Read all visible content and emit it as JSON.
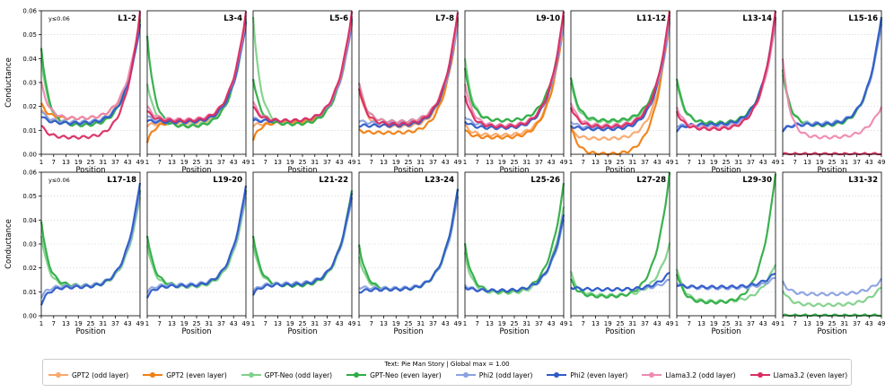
{
  "figure": {
    "ylabel": "Conductance",
    "xlabel": "Position",
    "cap_note": "y≤0.06"
  },
  "legend": {
    "title": "Text: Pie Man Story | Global max = 1.00",
    "entries": [
      {
        "name": "GPT2 (odd layer)",
        "color": "#f9a86b"
      },
      {
        "name": "GPT2 (even layer)",
        "color": "#f07f12"
      },
      {
        "name": "GPT-Neo (odd layer)",
        "color": "#7fd18a"
      },
      {
        "name": "GPT-Neo (even layer)",
        "color": "#2fad46"
      },
      {
        "name": "Phi2 (odd layer)",
        "color": "#8aa2e0"
      },
      {
        "name": "Phi2 (even layer)",
        "color": "#2e5bc8"
      },
      {
        "name": "Llama3.2 (odd layer)",
        "color": "#ee8ab0"
      },
      {
        "name": "Llama3.2 (even layer)",
        "color": "#d92d62"
      }
    ]
  },
  "chart_data": {
    "type": "line",
    "x": [
      1,
      2,
      3,
      4,
      5,
      6,
      7,
      8,
      9,
      10,
      11,
      12,
      13,
      14,
      15,
      16,
      17,
      18,
      19,
      20,
      21,
      22,
      23,
      24,
      25,
      26,
      27,
      28,
      29,
      30,
      31,
      32,
      33,
      34,
      35,
      36,
      37,
      38,
      39,
      40,
      41,
      42,
      43,
      44,
      45,
      46,
      47,
      48,
      49
    ],
    "xticks": [
      "1",
      "7",
      "13",
      "19",
      "25",
      "31",
      "37",
      "43",
      "49"
    ],
    "yticks": [
      "0.00",
      "0.01",
      "0.02",
      "0.03",
      "0.04",
      "0.05",
      "0.06"
    ],
    "ylim": [
      0,
      0.06
    ],
    "xlim": [
      1,
      49
    ],
    "grid": "horizontal dotted",
    "panels": [
      {
        "title": "L1-2",
        "series": {
          "GPT2 (odd layer)": {
            "start": 0.019,
            "base": 0.013,
            "end": 0.055
          },
          "GPT2 (even layer)": {
            "start": 0.021,
            "base": 0.015,
            "end": 0.056
          },
          "GPT-Neo (odd layer)": {
            "start": 0.04,
            "base": 0.0125,
            "end": 0.056
          },
          "GPT-Neo (even layer)": {
            "start": 0.045,
            "base": 0.012,
            "end": 0.057
          },
          "Phi2 (odd layer)": {
            "start": 0.018,
            "base": 0.0135,
            "end": 0.054
          },
          "Phi2 (even layer)": {
            "start": 0.016,
            "base": 0.013,
            "end": 0.055
          },
          "Llama3.2 (odd layer)": {
            "start": 0.03,
            "base": 0.015,
            "end": 0.058
          },
          "Llama3.2 (even layer)": {
            "start": 0.012,
            "base": 0.007,
            "end": 0.06
          }
        }
      },
      {
        "title": "L3-4",
        "series": {
          "GPT2 (odd layer)": {
            "start": 0.012,
            "base": 0.013,
            "end": 0.055
          },
          "GPT2 (even layer)": {
            "start": 0.005,
            "base": 0.0135,
            "end": 0.056
          },
          "GPT-Neo (odd layer)": {
            "start": 0.03,
            "base": 0.012,
            "end": 0.056
          },
          "GPT-Neo (even layer)": {
            "start": 0.05,
            "base": 0.0115,
            "end": 0.057
          },
          "Phi2 (odd layer)": {
            "start": 0.016,
            "base": 0.0135,
            "end": 0.055
          },
          "Phi2 (even layer)": {
            "start": 0.014,
            "base": 0.0135,
            "end": 0.056
          },
          "Llama3.2 (odd layer)": {
            "start": 0.02,
            "base": 0.0145,
            "end": 0.058
          },
          "Llama3.2 (even layer)": {
            "start": 0.018,
            "base": 0.014,
            "end": 0.06
          }
        }
      },
      {
        "title": "L5-6",
        "series": {
          "GPT2 (odd layer)": {
            "start": 0.012,
            "base": 0.013,
            "end": 0.055
          },
          "GPT2 (even layer)": {
            "start": 0.006,
            "base": 0.0135,
            "end": 0.056
          },
          "GPT-Neo (odd layer)": {
            "start": 0.058,
            "base": 0.0125,
            "end": 0.056
          },
          "GPT-Neo (even layer)": {
            "start": 0.032,
            "base": 0.0125,
            "end": 0.057
          },
          "Phi2 (odd layer)": {
            "start": 0.015,
            "base": 0.014,
            "end": 0.055
          },
          "Phi2 (even layer)": {
            "start": 0.014,
            "base": 0.014,
            "end": 0.057
          },
          "Llama3.2 (odd layer)": {
            "start": 0.022,
            "base": 0.014,
            "end": 0.058
          },
          "Llama3.2 (even layer)": {
            "start": 0.02,
            "base": 0.014,
            "end": 0.06
          }
        }
      },
      {
        "title": "L7-8",
        "series": {
          "GPT2 (odd layer)": {
            "start": 0.028,
            "base": 0.0115,
            "end": 0.055
          },
          "GPT2 (even layer)": {
            "start": 0.01,
            "base": 0.009,
            "end": 0.056
          },
          "GPT-Neo (odd layer)": {
            "start": 0.03,
            "base": 0.0135,
            "end": 0.056
          },
          "GPT-Neo (even layer)": {
            "start": 0.03,
            "base": 0.0135,
            "end": 0.057
          },
          "Phi2 (odd layer)": {
            "start": 0.014,
            "base": 0.013,
            "end": 0.055
          },
          "Phi2 (even layer)": {
            "start": 0.012,
            "base": 0.012,
            "end": 0.058
          },
          "Llama3.2 (odd layer)": {
            "start": 0.03,
            "base": 0.0135,
            "end": 0.058
          },
          "Llama3.2 (even layer)": {
            "start": 0.028,
            "base": 0.0125,
            "end": 0.06
          }
        }
      },
      {
        "title": "L9-10",
        "series": {
          "GPT2 (odd layer)": {
            "start": 0.012,
            "base": 0.008,
            "end": 0.055
          },
          "GPT2 (even layer)": {
            "start": 0.01,
            "base": 0.007,
            "end": 0.056
          },
          "GPT-Neo (odd layer)": {
            "start": 0.04,
            "base": 0.014,
            "end": 0.056
          },
          "GPT-Neo (even layer)": {
            "start": 0.036,
            "base": 0.014,
            "end": 0.057
          },
          "Phi2 (odd layer)": {
            "start": 0.016,
            "base": 0.012,
            "end": 0.055
          },
          "Phi2 (even layer)": {
            "start": 0.014,
            "base": 0.011,
            "end": 0.058
          },
          "Llama3.2 (odd layer)": {
            "start": 0.03,
            "base": 0.012,
            "end": 0.058
          },
          "Llama3.2 (even layer)": {
            "start": 0.025,
            "base": 0.0115,
            "end": 0.06
          }
        }
      },
      {
        "title": "L11-12",
        "series": {
          "GPT2 (odd layer)": {
            "start": 0.01,
            "base": 0.0065,
            "end": 0.055
          },
          "GPT2 (even layer)": {
            "start": 0.012,
            "base": 0.0,
            "end": 0.06
          },
          "GPT-Neo (odd layer)": {
            "start": 0.03,
            "base": 0.0135,
            "end": 0.056
          },
          "GPT-Neo (even layer)": {
            "start": 0.032,
            "base": 0.014,
            "end": 0.057
          },
          "Phi2 (odd layer)": {
            "start": 0.014,
            "base": 0.011,
            "end": 0.055
          },
          "Phi2 (even layer)": {
            "start": 0.012,
            "base": 0.0105,
            "end": 0.058
          },
          "Llama3.2 (odd layer)": {
            "start": 0.022,
            "base": 0.012,
            "end": 0.058
          },
          "Llama3.2 (even layer)": {
            "start": 0.02,
            "base": 0.0115,
            "end": 0.06
          }
        }
      },
      {
        "title": "L13-14",
        "series": {
          "GPT-Neo (odd layer)": {
            "start": 0.03,
            "base": 0.013,
            "end": 0.056
          },
          "GPT-Neo (even layer)": {
            "start": 0.032,
            "base": 0.013,
            "end": 0.057
          },
          "Phi2 (odd layer)": {
            "start": 0.012,
            "base": 0.012,
            "end": 0.055
          },
          "Phi2 (even layer)": {
            "start": 0.01,
            "base": 0.0125,
            "end": 0.058
          },
          "Llama3.2 (odd layer)": {
            "start": 0.02,
            "base": 0.011,
            "end": 0.056
          },
          "Llama3.2 (even layer)": {
            "start": 0.018,
            "base": 0.0105,
            "end": 0.06
          }
        }
      },
      {
        "title": "L15-16",
        "series": {
          "GPT-Neo (odd layer)": {
            "start": 0.034,
            "base": 0.0125,
            "end": 0.056
          },
          "GPT-Neo (even layer)": {
            "start": 0.036,
            "base": 0.012,
            "end": 0.057
          },
          "Phi2 (odd layer)": {
            "start": 0.01,
            "base": 0.013,
            "end": 0.055
          },
          "Phi2 (even layer)": {
            "start": 0.01,
            "base": 0.0125,
            "end": 0.058
          },
          "Llama3.2 (odd layer)": {
            "start": 0.04,
            "base": 0.007,
            "end": 0.02
          },
          "Llama3.2 (even layer)": {
            "start": 0.0,
            "base": 0.0,
            "end": 0.0
          }
        }
      },
      {
        "title": "L17-18",
        "series": {
          "GPT-Neo (odd layer)": {
            "start": 0.034,
            "base": 0.012,
            "end": 0.05
          },
          "GPT-Neo (even layer)": {
            "start": 0.04,
            "base": 0.0125,
            "end": 0.053
          },
          "Phi2 (odd layer)": {
            "start": 0.008,
            "base": 0.0125,
            "end": 0.052
          },
          "Phi2 (even layer)": {
            "start": 0.005,
            "base": 0.012,
            "end": 0.056
          }
        }
      },
      {
        "title": "L19-20",
        "series": {
          "GPT-Neo (odd layer)": {
            "start": 0.03,
            "base": 0.012,
            "end": 0.05
          },
          "GPT-Neo (even layer)": {
            "start": 0.034,
            "base": 0.0125,
            "end": 0.053
          },
          "Phi2 (odd layer)": {
            "start": 0.01,
            "base": 0.013,
            "end": 0.052
          },
          "Phi2 (even layer)": {
            "start": 0.008,
            "base": 0.0125,
            "end": 0.055
          }
        }
      },
      {
        "title": "L21-22",
        "series": {
          "GPT-Neo (odd layer)": {
            "start": 0.03,
            "base": 0.0125,
            "end": 0.05
          },
          "GPT-Neo (even layer)": {
            "start": 0.034,
            "base": 0.0125,
            "end": 0.053
          },
          "Phi2 (odd layer)": {
            "start": 0.01,
            "base": 0.0135,
            "end": 0.05
          },
          "Phi2 (even layer)": {
            "start": 0.009,
            "base": 0.013,
            "end": 0.052
          }
        }
      },
      {
        "title": "L23-24",
        "series": {
          "GPT-Neo (odd layer)": {
            "start": 0.025,
            "base": 0.011,
            "end": 0.05
          },
          "GPT-Neo (even layer)": {
            "start": 0.03,
            "base": 0.011,
            "end": 0.053
          },
          "Phi2 (odd layer)": {
            "start": 0.012,
            "base": 0.0115,
            "end": 0.05
          },
          "Phi2 (even layer)": {
            "start": 0.01,
            "base": 0.011,
            "end": 0.053
          }
        }
      },
      {
        "title": "L25-26",
        "series": {
          "GPT-Neo (odd layer)": {
            "start": 0.026,
            "base": 0.0095,
            "end": 0.045
          },
          "GPT-Neo (even layer)": {
            "start": 0.03,
            "base": 0.01,
            "end": 0.055
          },
          "Phi2 (odd layer)": {
            "start": 0.013,
            "base": 0.0105,
            "end": 0.04
          },
          "Phi2 (even layer)": {
            "start": 0.012,
            "base": 0.0105,
            "end": 0.042
          }
        }
      },
      {
        "title": "L27-28",
        "series": {
          "GPT-Neo (odd layer)": {
            "start": 0.018,
            "base": 0.0085,
            "end": 0.03
          },
          "GPT-Neo (even layer)": {
            "start": 0.015,
            "base": 0.008,
            "end": 0.06
          },
          "Phi2 (odd layer)": {
            "start": 0.012,
            "base": 0.011,
            "end": 0.015
          },
          "Phi2 (even layer)": {
            "start": 0.012,
            "base": 0.011,
            "end": 0.018
          }
        }
      },
      {
        "title": "L29-30",
        "series": {
          "GPT-Neo (odd layer)": {
            "start": 0.02,
            "base": 0.006,
            "end": 0.022
          },
          "GPT-Neo (even layer)": {
            "start": 0.018,
            "base": 0.0055,
            "end": 0.06
          },
          "Phi2 (odd layer)": {
            "start": 0.014,
            "base": 0.0115,
            "end": 0.016
          },
          "Phi2 (even layer)": {
            "start": 0.013,
            "base": 0.012,
            "end": 0.018
          }
        }
      },
      {
        "title": "L31-32",
        "series": {
          "GPT-Neo (odd layer)": {
            "start": 0.011,
            "base": 0.0045,
            "end": 0.012
          },
          "GPT-Neo (even layer)": {
            "start": 0.0,
            "base": 0.0,
            "end": 0.0
          },
          "Phi2 (odd layer)": {
            "start": 0.014,
            "base": 0.009,
            "end": 0.015
          }
        }
      }
    ]
  }
}
